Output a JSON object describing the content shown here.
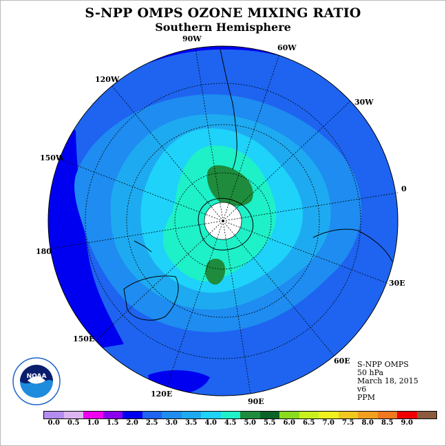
{
  "header": {
    "title": "S-NPP OMPS OZONE MIXING RATIO",
    "subtitle": "Southern Hemisphere"
  },
  "map": {
    "longitude_labels": {
      "l90w": "90W",
      "l60w": "60W",
      "l120w": "120W",
      "l30w": "30W",
      "l150w": "150W",
      "l0": "0",
      "l180": "180",
      "l30e": "30E",
      "l150e": "150E",
      "l60e": "60E",
      "l120e": "120E",
      "l90e": "90E"
    },
    "colors": {
      "lvl_1_5": "#0000f0",
      "lvl_2_0": "#1e64f0",
      "lvl_2_5": "#1e8cf0",
      "lvl_3_0": "#1eaaf0",
      "lvl_3_5": "#1ed2fa",
      "lvl_4_0": "#1ef0c8",
      "lvl_4_5": "#1e8c3c",
      "pole": "#ffffff"
    }
  },
  "info": {
    "instrument": "S-NPP OMPS",
    "level": "50 hPa",
    "date": "March 18, 2015",
    "version": "v6",
    "units": "PPM"
  },
  "logo": {
    "text": "NOAA",
    "ring_text": "NATIONAL OCEANIC AND ATMOSPHERIC ADMINISTRATION · U.S. DEPARTMENT OF COMMERCE"
  },
  "colorbar": {
    "colors": [
      "#b48cf0",
      "#dcb4f0",
      "#f000f0",
      "#8c00f0",
      "#0000f0",
      "#1e64f0",
      "#1e8cf0",
      "#1eaaf0",
      "#1ed2fa",
      "#1ef0c8",
      "#1e8c3c",
      "#0a6428",
      "#8cdc1e",
      "#c8f01e",
      "#f0f01e",
      "#f0c81e",
      "#f0a01e",
      "#f0781e",
      "#f00000",
      "#8c5a3c"
    ],
    "ticks": [
      "0.0",
      "0.5",
      "1.0",
      "1.5",
      "2.0",
      "2.5",
      "3.0",
      "3.5",
      "4.0",
      "4.5",
      "5.0",
      "5.5",
      "6.0",
      "6.5",
      "7.0",
      "7.5",
      "8.0",
      "8.5",
      "9.0"
    ]
  }
}
